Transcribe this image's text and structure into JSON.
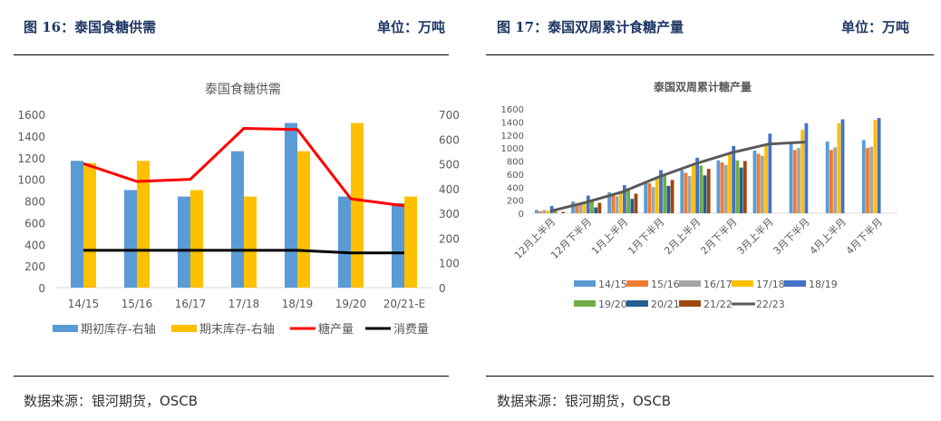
{
  "left": {
    "figure_title": "图 16：泰国食糖供需",
    "unit": "单位：万吨",
    "source": "数据来源：银河期货，OSCB"
  },
  "right": {
    "figure_title": "图 17：泰国双周累计食糖产量",
    "unit": "单位：万吨",
    "source": "数据来源：银河期货，OSCB"
  },
  "chart_data": [
    {
      "type": "bar+line",
      "title": "泰国食糖供需",
      "categories": [
        "14/15",
        "15/16",
        "16/17",
        "17/18",
        "18/19",
        "19/20",
        "20/21-E"
      ],
      "left_axis": {
        "ylim": [
          0,
          1600
        ],
        "ticks": [
          "0",
          "200",
          "400",
          "600",
          "800",
          "1000",
          "1200",
          "1400",
          "1600"
        ]
      },
      "right_axis": {
        "ylim": [
          0,
          700
        ],
        "ticks": [
          "0",
          "100",
          "200",
          "300",
          "400",
          "500",
          "600",
          "700"
        ]
      },
      "series": [
        {
          "name": "期初库存-右轴",
          "kind": "bar",
          "axis": "right",
          "color": "#5b9bd5",
          "values": [
            512,
            394,
            368,
            551,
            665,
            368,
            341
          ]
        },
        {
          "name": "期末库存-右轴",
          "kind": "bar",
          "axis": "right",
          "color": "#ffc000",
          "values": [
            503,
            512,
            394,
            368,
            551,
            665,
            368
          ]
        },
        {
          "name": "糖产量",
          "kind": "line",
          "axis": "left",
          "color": "#ff0000",
          "values": [
            1145,
            980,
            1000,
            1470,
            1460,
            820,
            755
          ]
        },
        {
          "name": "消费量",
          "kind": "line",
          "axis": "left",
          "color": "#000000",
          "values": [
            345,
            345,
            345,
            345,
            345,
            320,
            320
          ]
        }
      ],
      "legend": "bottom"
    },
    {
      "type": "bar+line",
      "title": "泰国双周累计糖产量",
      "categories": [
        "12月上半月",
        "12月下半月",
        "1月上半月",
        "1月下半月",
        "2月上半月",
        "2月下半月",
        "3月上半月",
        "3月下半月",
        "4月上半月",
        "4月下半月"
      ],
      "ylim": [
        0,
        1600
      ],
      "ticks": [
        "0",
        "200",
        "400",
        "600",
        "800",
        "1000",
        "1200",
        "1400",
        "1600"
      ],
      "series": [
        {
          "name": "14/15",
          "kind": "bar",
          "color": "#5b9bd5",
          "values": [
            50,
            180,
            320,
            490,
            660,
            810,
            960,
            1080,
            1100,
            1120
          ]
        },
        {
          "name": "15/16",
          "kind": "bar",
          "color": "#ed7d31",
          "values": [
            30,
            130,
            280,
            460,
            620,
            780,
            910,
            970,
            970,
            1000
          ]
        },
        {
          "name": "16/17",
          "kind": "bar",
          "color": "#a5a5a5",
          "values": [
            50,
            140,
            260,
            400,
            570,
            740,
            880,
            1000,
            1010,
            1020
          ]
        },
        {
          "name": "17/18",
          "kind": "bar",
          "color": "#ffc000",
          "values": [
            40,
            170,
            330,
            550,
            730,
            900,
            1060,
            1280,
            1380,
            1430
          ]
        },
        {
          "name": "18/19",
          "kind": "bar",
          "color": "#4472c4",
          "values": [
            110,
            270,
            430,
            660,
            850,
            1030,
            1220,
            1380,
            1440,
            1460
          ]
        },
        {
          "name": "19/20",
          "kind": "bar",
          "color": "#70ad47",
          "values": [
            30,
            190,
            350,
            580,
            730,
            810,
            null,
            null,
            null,
            null
          ]
        },
        {
          "name": "20/21",
          "kind": "bar",
          "color": "#255e91",
          "values": [
            null,
            90,
            220,
            420,
            580,
            700,
            null,
            null,
            null,
            null
          ]
        },
        {
          "name": "21/22",
          "kind": "bar",
          "color": "#9e480e",
          "values": [
            20,
            160,
            300,
            510,
            680,
            800,
            null,
            null,
            null,
            null
          ]
        },
        {
          "name": "22/23",
          "kind": "line",
          "color": "#595959",
          "values": [
            30,
            170,
            330,
            560,
            760,
            930,
            1060,
            1090,
            null,
            null
          ]
        }
      ],
      "legend": "bottom"
    }
  ]
}
